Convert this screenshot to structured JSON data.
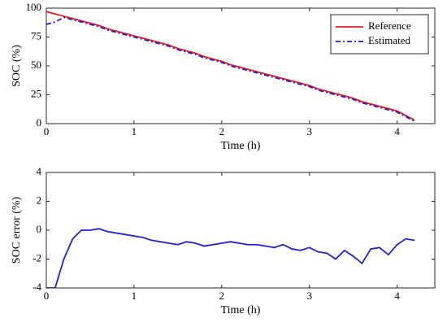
{
  "chart_data": [
    {
      "type": "line",
      "xlabel": "Time (h)",
      "ylabel": "SOC (%)",
      "legend": "upper right",
      "x": [
        0,
        0.1,
        0.2,
        0.3,
        0.4,
        0.5,
        0.6,
        0.7,
        0.8,
        0.9,
        1.0,
        1.1,
        1.2,
        1.3,
        1.4,
        1.5,
        1.6,
        1.7,
        1.8,
        1.9,
        2.0,
        2.1,
        2.2,
        2.3,
        2.4,
        2.5,
        2.6,
        2.7,
        2.8,
        2.9,
        3.0,
        3.1,
        3.2,
        3.3,
        3.4,
        3.5,
        3.6,
        3.7,
        3.8,
        3.9,
        4.0,
        4.1,
        4.2
      ],
      "series": [
        {
          "name": "Reference",
          "color": "#e8191f",
          "linestyle": "solid",
          "values": [
            97,
            95,
            93,
            91,
            89,
            87,
            85,
            82,
            80,
            78,
            76,
            74,
            72,
            70,
            68,
            65,
            63,
            61,
            58,
            56,
            54,
            51,
            49,
            47,
            45,
            43,
            41,
            39,
            37,
            35,
            33,
            30,
            28,
            26,
            24,
            22,
            19,
            17,
            15,
            13,
            11,
            7,
            3
          ]
        },
        {
          "name": "Estimated",
          "color": "#1f1fd6",
          "linestyle": "dashed",
          "values": [
            86,
            88,
            92,
            90,
            88,
            86,
            84,
            81,
            79,
            77,
            75,
            73,
            71,
            69,
            67,
            64,
            62,
            60,
            57,
            55,
            53,
            50,
            48,
            46,
            44,
            42,
            40,
            38,
            36,
            34,
            32,
            29,
            27,
            25,
            23,
            21,
            18,
            16,
            14,
            12,
            10,
            6,
            2
          ]
        }
      ],
      "xlim": [
        0,
        4.43
      ],
      "xticks": [
        0,
        1,
        2,
        3,
        4
      ],
      "ylim": [
        0,
        100
      ],
      "yticks": [
        0,
        25,
        50,
        75,
        100
      ]
    },
    {
      "type": "line",
      "xlabel": "Time (h)",
      "ylabel": "SOC error (%)",
      "x": [
        0,
        0.1,
        0.2,
        0.3,
        0.4,
        0.5,
        0.6,
        0.7,
        0.8,
        0.9,
        1.0,
        1.1,
        1.2,
        1.3,
        1.4,
        1.5,
        1.6,
        1.7,
        1.8,
        1.9,
        2.0,
        2.1,
        2.2,
        2.3,
        2.4,
        2.5,
        2.6,
        2.7,
        2.8,
        2.9,
        3.0,
        3.1,
        3.2,
        3.3,
        3.4,
        3.5,
        3.6,
        3.7,
        3.8,
        3.9,
        4.0,
        4.1,
        4.2
      ],
      "series": [
        {
          "color": "#1f1fd6",
          "linestyle": "solid",
          "values": [
            -4,
            -4,
            -2,
            -0.6,
            0,
            0,
            0.1,
            -0.1,
            -0.2,
            -0.3,
            -0.4,
            -0.5,
            -0.7,
            -0.8,
            -0.9,
            -1.0,
            -0.8,
            -0.9,
            -1.1,
            -1.0,
            -0.9,
            -0.8,
            -0.9,
            -1.0,
            -1.0,
            -1.1,
            -1.2,
            -1.0,
            -1.3,
            -1.4,
            -1.2,
            -1.5,
            -1.6,
            -2.0,
            -1.4,
            -1.8,
            -2.3,
            -1.3,
            -1.2,
            -1.7,
            -1.0,
            -0.6,
            -0.7
          ]
        }
      ],
      "xlim": [
        0,
        4.43
      ],
      "xticks": [
        0,
        1,
        2,
        3,
        4
      ],
      "ylim": [
        -4,
        4
      ],
      "yticks": [
        -4,
        -2,
        0,
        2,
        4
      ]
    }
  ]
}
